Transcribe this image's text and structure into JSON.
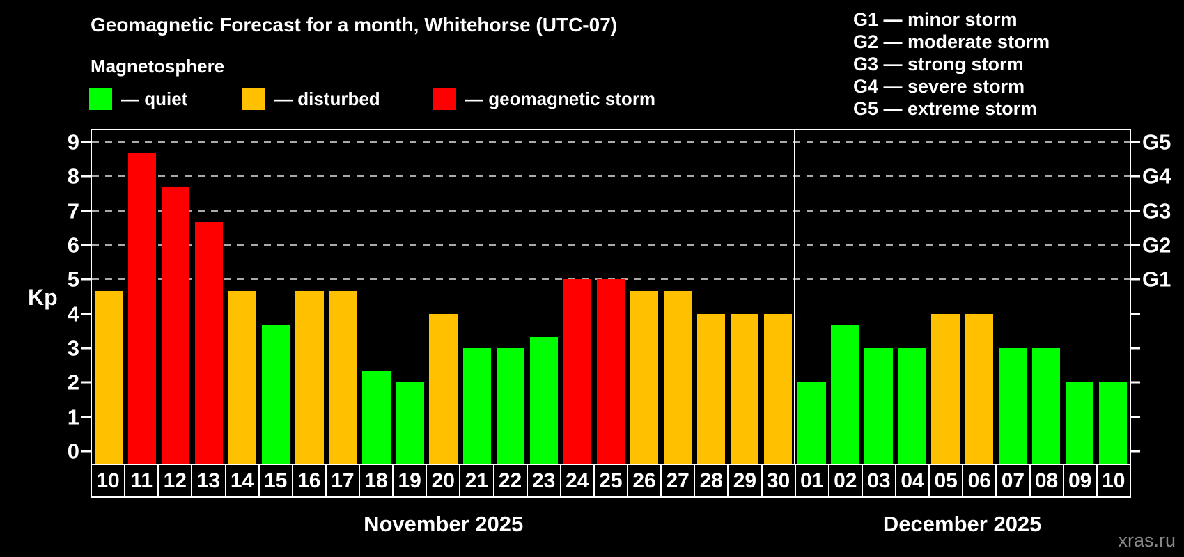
{
  "header": {
    "title": "Geomagnetic Forecast for a month, Whitehorse (UTC-07)",
    "subtitle": "Magnetosphere"
  },
  "legend": {
    "quiet_label": "— quiet",
    "disturbed_label": "— disturbed",
    "storm_label": "— geomagnetic storm"
  },
  "storm_scale": [
    "G1 — minor storm",
    "G2 — moderate storm",
    "G3 — strong storm",
    "G4 — severe storm",
    "G5 — extreme storm"
  ],
  "watermark": "xras.ru",
  "colors": {
    "quiet": "#00ff00",
    "disturbed": "#ffc000",
    "storm": "#ff0000",
    "grid": "#aaaaaa",
    "axis": "#ffffff",
    "background": "#000000",
    "watermark": "#888888"
  },
  "y_axis": {
    "label": "Kp",
    "ticks": [
      0,
      1,
      2,
      3,
      4,
      5,
      6,
      7,
      8,
      9
    ]
  },
  "right_axis": {
    "levels": [
      {
        "kp": 5,
        "label": "G1"
      },
      {
        "kp": 6,
        "label": "G2"
      },
      {
        "kp": 7,
        "label": "G3"
      },
      {
        "kp": 8,
        "label": "G4"
      },
      {
        "kp": 9,
        "label": "G5"
      }
    ]
  },
  "chart_data": {
    "type": "bar",
    "title": "Geomagnetic Forecast for a month, Whitehorse (UTC-07)",
    "subtitle": "Magnetosphere",
    "ylabel": "Kp",
    "ylim": [
      0,
      9
    ],
    "grid": "horizontal dashed lines at Kp 5,6,7,8,9 (G1..G5)",
    "legend_position": "top-left",
    "categories": [
      "10",
      "11",
      "12",
      "13",
      "14",
      "15",
      "16",
      "17",
      "18",
      "19",
      "20",
      "21",
      "22",
      "23",
      "24",
      "25",
      "26",
      "27",
      "28",
      "29",
      "30",
      "01",
      "02",
      "03",
      "04",
      "05",
      "06",
      "07",
      "08",
      "09",
      "10"
    ],
    "values": [
      4.67,
      8.67,
      7.67,
      6.67,
      4.67,
      3.67,
      4.67,
      4.67,
      2.33,
      2,
      4,
      3,
      3,
      3.33,
      5,
      5,
      4.67,
      4.67,
      4,
      4,
      4,
      2,
      3.67,
      3,
      3,
      4,
      4,
      3,
      3,
      2,
      2
    ],
    "statuses": [
      "disturbed",
      "storm",
      "storm",
      "storm",
      "disturbed",
      "quiet",
      "disturbed",
      "disturbed",
      "quiet",
      "quiet",
      "disturbed",
      "quiet",
      "quiet",
      "quiet",
      "storm",
      "storm",
      "disturbed",
      "disturbed",
      "disturbed",
      "disturbed",
      "disturbed",
      "quiet",
      "quiet",
      "quiet",
      "quiet",
      "disturbed",
      "disturbed",
      "quiet",
      "quiet",
      "quiet",
      "quiet"
    ],
    "month_split_index": 21,
    "months": [
      {
        "label": "November 2025",
        "num_days": 21
      },
      {
        "label": "December 2025",
        "num_days": 10
      }
    ]
  }
}
